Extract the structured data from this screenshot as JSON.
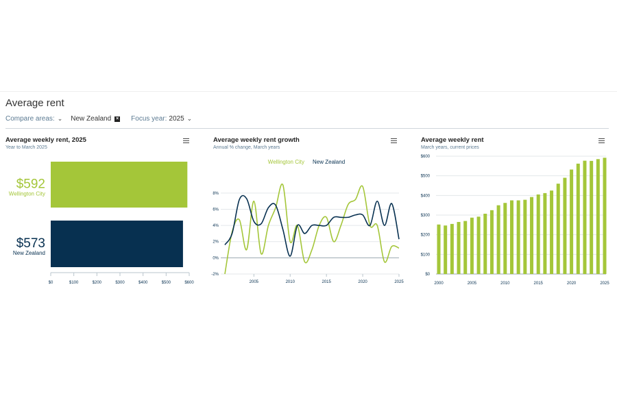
{
  "page": {
    "title": "Average rent",
    "compare_label": "Compare areas:",
    "compare_area": "New Zealand",
    "focus_label": "Focus year:",
    "focus_value": "2025"
  },
  "colors": {
    "wellington": "#a4c639",
    "nz": "#073050"
  },
  "chart_data": [
    {
      "type": "bar",
      "title": "Average weekly rent, 2025",
      "subtitle": "Year to March 2025",
      "orientation": "horizontal",
      "categories": [
        "Wellington City",
        "New Zealand"
      ],
      "values": [
        592,
        573
      ],
      "value_labels": [
        "$592",
        "$573"
      ],
      "xlim": [
        0,
        600
      ],
      "xticks": [
        "$0",
        "$100",
        "$200",
        "$300",
        "$400",
        "$500",
        "$600"
      ]
    },
    {
      "type": "line",
      "title": "Average weekly rent growth",
      "subtitle": "Annual % change, March years",
      "ylim": [
        -2,
        9
      ],
      "xlim": [
        2001,
        2025
      ],
      "yticks": [
        "-2%",
        "0%",
        "2%",
        "4%",
        "6%",
        "8%"
      ],
      "xticks": [
        "2005",
        "2010",
        "2015",
        "2020",
        "2025"
      ],
      "grid": true,
      "legend": "top",
      "series": [
        {
          "name": "Wellington City",
          "x": [
            2001,
            2002,
            2003,
            2004,
            2005,
            2006,
            2007,
            2008,
            2009,
            2010,
            2011,
            2012,
            2013,
            2014,
            2015,
            2016,
            2017,
            2018,
            2019,
            2020,
            2021,
            2022,
            2023,
            2024,
            2025
          ],
          "values": [
            -2,
            3.2,
            4.7,
            1,
            7,
            0.5,
            4,
            6.2,
            9,
            2,
            4,
            -0.5,
            1,
            4,
            5,
            2,
            4,
            6.6,
            7.2,
            8.8,
            4,
            4,
            -0.5,
            1.4,
            1.2
          ]
        },
        {
          "name": "New Zealand",
          "x": [
            2001,
            2002,
            2003,
            2004,
            2005,
            2006,
            2007,
            2008,
            2009,
            2010,
            2011,
            2012,
            2013,
            2014,
            2015,
            2016,
            2017,
            2018,
            2019,
            2020,
            2021,
            2022,
            2023,
            2024,
            2025
          ],
          "values": [
            1.6,
            3,
            7.2,
            7.3,
            4.5,
            4.2,
            6.2,
            6.5,
            3.5,
            0.2,
            4,
            3,
            4,
            4,
            4,
            5,
            5,
            5,
            5.3,
            5.3,
            4,
            7,
            4,
            6.7,
            2.3
          ]
        }
      ]
    },
    {
      "type": "bar",
      "title": "Average weekly rent",
      "subtitle": "March years, current prices",
      "x": [
        2000,
        2001,
        2002,
        2003,
        2004,
        2005,
        2006,
        2007,
        2008,
        2009,
        2010,
        2011,
        2012,
        2013,
        2014,
        2015,
        2016,
        2017,
        2018,
        2019,
        2020,
        2021,
        2022,
        2023,
        2024,
        2025
      ],
      "values": [
        252,
        247,
        255,
        265,
        270,
        287,
        292,
        307,
        325,
        350,
        362,
        375,
        375,
        378,
        392,
        405,
        412,
        425,
        460,
        490,
        532,
        562,
        577,
        576,
        585,
        592
      ],
      "ylim": [
        0,
        600
      ],
      "yticks": [
        "$0",
        "$100",
        "$200",
        "$300",
        "$400",
        "$500",
        "$600"
      ],
      "xticks": [
        "2000",
        "2005",
        "2010",
        "2015",
        "2020",
        "2025"
      ],
      "grid": true
    }
  ]
}
